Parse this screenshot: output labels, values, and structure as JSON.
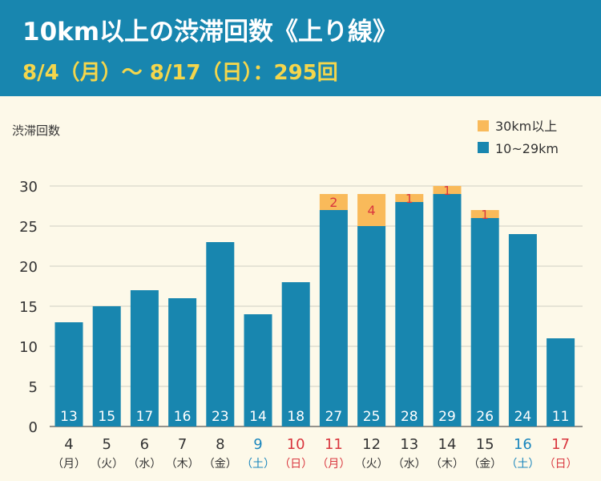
{
  "title": "10km以上の渋滞回数《上り線》",
  "subtitle": "8/4（月）～ 8/17（日）：295回",
  "colors": {
    "header_bg": "#1886af",
    "background": "#fdf9e9",
    "series_10_29": "#1886af",
    "series_30": "#f9ba5a",
    "saturday": "#1a86bd",
    "sunday": "#d9363e",
    "weekday": "#333333"
  },
  "chart_data": {
    "type": "bar",
    "stacked": true,
    "ylabel": "渋滞回数",
    "ylim": [
      0,
      30
    ],
    "yticks": [
      0,
      5,
      10,
      15,
      20,
      25,
      30
    ],
    "grid": true,
    "legend_position": "top-right",
    "legend": [
      "30km以上",
      "10~29km"
    ],
    "categories": [
      {
        "day": "4",
        "weekday": "（月）",
        "type": "weekday"
      },
      {
        "day": "5",
        "weekday": "（火）",
        "type": "weekday"
      },
      {
        "day": "6",
        "weekday": "（水）",
        "type": "weekday"
      },
      {
        "day": "7",
        "weekday": "（木）",
        "type": "weekday"
      },
      {
        "day": "8",
        "weekday": "（金）",
        "type": "weekday"
      },
      {
        "day": "9",
        "weekday": "（土）",
        "type": "saturday"
      },
      {
        "day": "10",
        "weekday": "（日）",
        "type": "sunday"
      },
      {
        "day": "11",
        "weekday": "（月）",
        "type": "holiday"
      },
      {
        "day": "12",
        "weekday": "（火）",
        "type": "weekday"
      },
      {
        "day": "13",
        "weekday": "（水）",
        "type": "weekday"
      },
      {
        "day": "14",
        "weekday": "（木）",
        "type": "weekday"
      },
      {
        "day": "15",
        "weekday": "（金）",
        "type": "weekday"
      },
      {
        "day": "16",
        "weekday": "（土）",
        "type": "saturday"
      },
      {
        "day": "17",
        "weekday": "（日）",
        "type": "sunday"
      }
    ],
    "series": [
      {
        "name": "10~29km",
        "values": [
          13,
          15,
          17,
          16,
          23,
          14,
          18,
          27,
          25,
          28,
          29,
          26,
          24,
          11
        ]
      },
      {
        "name": "30km以上",
        "values": [
          0,
          0,
          0,
          0,
          0,
          0,
          0,
          2,
          4,
          1,
          1,
          1,
          0,
          0
        ]
      }
    ]
  }
}
